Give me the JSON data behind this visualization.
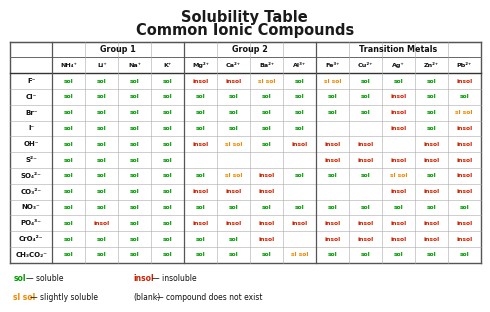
{
  "title_line1": "Solubility Table",
  "title_line2": "Common Ionic Compounds",
  "background_color": "#ffffff",
  "sol_color": "#009900",
  "insol_color": "#cc2200",
  "slsol_color": "#ee8800",
  "col_headers": [
    "",
    "NH₄⁺",
    "Li⁺",
    "Na⁺",
    "K⁺",
    "Mg²⁺",
    "Ca²⁺",
    "Ba²⁺",
    "Al³⁺",
    "Fe³⁺",
    "Cu²⁺",
    "Ag⁺",
    "Zn²⁺",
    "Pb²⁺"
  ],
  "row_anions": [
    "F⁻",
    "Cl⁻",
    "Br⁻",
    "I⁻",
    "OH⁻",
    "S²⁻",
    "SO₄²⁻",
    "CO₃²⁻",
    "NO₃⁻",
    "PO₄³⁻",
    "CrO₄²⁻",
    "CH₃CO₂⁻"
  ],
  "table_data": [
    [
      "sol",
      "sol",
      "sol",
      "sol",
      "insol",
      "insol",
      "sl sol",
      "sol",
      "sl sol",
      "sol",
      "sol",
      "sol",
      "insol"
    ],
    [
      "sol",
      "sol",
      "sol",
      "sol",
      "sol",
      "sol",
      "sol",
      "sol",
      "sol",
      "sol",
      "insol",
      "sol",
      "sol"
    ],
    [
      "sol",
      "sol",
      "sol",
      "sol",
      "sol",
      "sol",
      "sol",
      "sol",
      "sol",
      "sol",
      "insol",
      "sol",
      "sl sol"
    ],
    [
      "sol",
      "sol",
      "sol",
      "sol",
      "sol",
      "sol",
      "sol",
      "sol",
      "",
      "",
      "insol",
      "sol",
      "insol"
    ],
    [
      "sol",
      "sol",
      "sol",
      "sol",
      "insol",
      "sl sol",
      "sol",
      "insol",
      "insol",
      "insol",
      "",
      "insol",
      "insol"
    ],
    [
      "sol",
      "sol",
      "sol",
      "sol",
      "",
      "",
      "",
      "",
      "insol",
      "insol",
      "insol",
      "insol",
      "insol"
    ],
    [
      "sol",
      "sol",
      "sol",
      "sol",
      "sol",
      "sl sol",
      "insol",
      "sol",
      "sol",
      "sol",
      "sl sol",
      "sol",
      "insol"
    ],
    [
      "sol",
      "sol",
      "sol",
      "sol",
      "insol",
      "insol",
      "insol",
      "",
      "",
      "",
      "insol",
      "insol",
      "insol"
    ],
    [
      "sol",
      "sol",
      "sol",
      "sol",
      "sol",
      "sol",
      "sol",
      "sol",
      "sol",
      "sol",
      "sol",
      "sol",
      "sol"
    ],
    [
      "sol",
      "insol",
      "sol",
      "sol",
      "insol",
      "insol",
      "insol",
      "insol",
      "insol",
      "insol",
      "insol",
      "insol",
      "insol"
    ],
    [
      "sol",
      "sol",
      "sol",
      "sol",
      "sol",
      "sol",
      "insol",
      "",
      "insol",
      "insol",
      "insol",
      "insol",
      "insol"
    ],
    [
      "sol",
      "sol",
      "sol",
      "sol",
      "sol",
      "sol",
      "sol",
      "sl sol",
      "sol",
      "sol",
      "sol",
      "sol",
      "sol"
    ]
  ],
  "group_spans": [
    {
      "label": "Group 1",
      "start": 1,
      "end": 4
    },
    {
      "label": "Group 2",
      "start": 5,
      "end": 8
    },
    {
      "label": "Transition Metals",
      "start": 9,
      "end": 13
    }
  ]
}
